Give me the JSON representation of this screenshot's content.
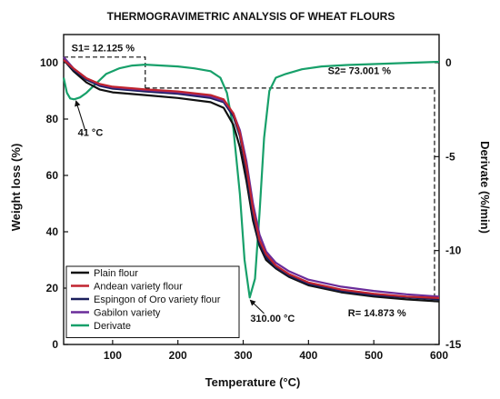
{
  "chart_data": {
    "type": "line",
    "title": "THERMOGRAVIMETRIC ANALYSIS OF WHEAT FLOURS",
    "xlabel": "Temperature (°C)",
    "ylabel": "Weight loss (%)",
    "y2label": "Derivate (%/min)",
    "xlim": [
      25,
      600
    ],
    "ylim": [
      0,
      110
    ],
    "y2lim": [
      -15,
      1.5
    ],
    "xticks": [
      100,
      200,
      300,
      400,
      500,
      600
    ],
    "yticks": [
      0,
      20,
      40,
      60,
      80,
      100
    ],
    "y2ticks": [
      0,
      -5,
      -10,
      -15
    ],
    "grid": false,
    "legend_position": "bottom-left",
    "series": [
      {
        "name": "Plain flour",
        "color": "#111111",
        "axis": "left",
        "x": [
          25,
          40,
          60,
          80,
          100,
          150,
          200,
          250,
          270,
          285,
          295,
          305,
          315,
          325,
          335,
          350,
          370,
          400,
          450,
          500,
          550,
          600
        ],
        "y": [
          101,
          97,
          93,
          90.5,
          89.5,
          88.5,
          87.5,
          86,
          84,
          78,
          70,
          58,
          44,
          35,
          30,
          27,
          24,
          21,
          18.5,
          17,
          16,
          15.3
        ]
      },
      {
        "name": "Andean variety flour",
        "color": "#c0242e",
        "axis": "left",
        "x": [
          25,
          40,
          60,
          80,
          100,
          150,
          200,
          250,
          270,
          285,
          295,
          305,
          315,
          325,
          335,
          350,
          370,
          400,
          450,
          500,
          550,
          600
        ],
        "y": [
          101,
          98,
          94.5,
          92.5,
          91.5,
          90.5,
          89.8,
          88.5,
          87,
          82,
          75,
          63,
          48,
          37,
          32,
          28,
          25,
          22,
          19.5,
          18,
          17,
          16.5
        ]
      },
      {
        "name": "Espingon of Oro variety flour",
        "color": "#1a1f5c",
        "axis": "left",
        "x": [
          25,
          40,
          60,
          80,
          100,
          150,
          200,
          250,
          270,
          285,
          295,
          305,
          315,
          325,
          335,
          350,
          370,
          400,
          450,
          500,
          550,
          600
        ],
        "y": [
          101,
          97.5,
          94,
          91.8,
          90.8,
          89.8,
          89,
          87.5,
          86,
          81,
          74,
          61,
          46,
          36,
          31,
          27.5,
          24.5,
          21.5,
          19,
          17.5,
          16.7,
          16
        ]
      },
      {
        "name": "Gabilon variety",
        "color": "#6a2c9a",
        "axis": "left",
        "x": [
          25,
          40,
          60,
          80,
          100,
          150,
          200,
          250,
          270,
          285,
          295,
          305,
          315,
          325,
          335,
          350,
          370,
          400,
          450,
          500,
          550,
          600
        ],
        "y": [
          102,
          98,
          94.5,
          92.3,
          91.3,
          90.3,
          89.5,
          88,
          86.5,
          82,
          76,
          65,
          50,
          39,
          33,
          29,
          26,
          23,
          20.5,
          19,
          17.8,
          17
        ]
      },
      {
        "name": "Derivate",
        "color": "#17a06a",
        "axis": "right",
        "x": [
          25,
          30,
          35,
          41,
          50,
          60,
          75,
          90,
          110,
          130,
          150,
          175,
          200,
          225,
          250,
          265,
          275,
          285,
          295,
          302,
          310,
          318,
          325,
          332,
          340,
          350,
          365,
          390,
          420,
          460,
          520,
          600
        ],
        "y": [
          -0.8,
          -1.6,
          -1.9,
          -1.95,
          -1.85,
          -1.6,
          -1.1,
          -0.6,
          -0.3,
          -0.15,
          -0.1,
          -0.15,
          -0.2,
          -0.3,
          -0.45,
          -0.8,
          -1.6,
          -3.5,
          -7,
          -10.5,
          -12.5,
          -11.5,
          -8,
          -4,
          -1.5,
          -0.8,
          -0.6,
          -0.35,
          -0.2,
          -0.12,
          -0.05,
          0.05
        ]
      }
    ],
    "annotations": [
      {
        "text": "S1= 12.125 %",
        "x": 37,
        "y": 104
      },
      {
        "text": "S2= 73.001 %",
        "x": 478,
        "y": 96
      },
      {
        "text": "41 °C",
        "x": 66,
        "y": 74
      },
      {
        "text": "310.00 °C",
        "x": 345,
        "y": 8
      },
      {
        "text": "R= 14.873 %",
        "x": 505,
        "y": 10
      }
    ],
    "step_lines": {
      "s1": {
        "x_start": 25,
        "x_end": 150,
        "y_top": 102,
        "y_bottom": 91
      },
      "s2": {
        "x_start": 150,
        "x_end": 593,
        "y_top": 91,
        "y_bottom": 15
      }
    }
  }
}
